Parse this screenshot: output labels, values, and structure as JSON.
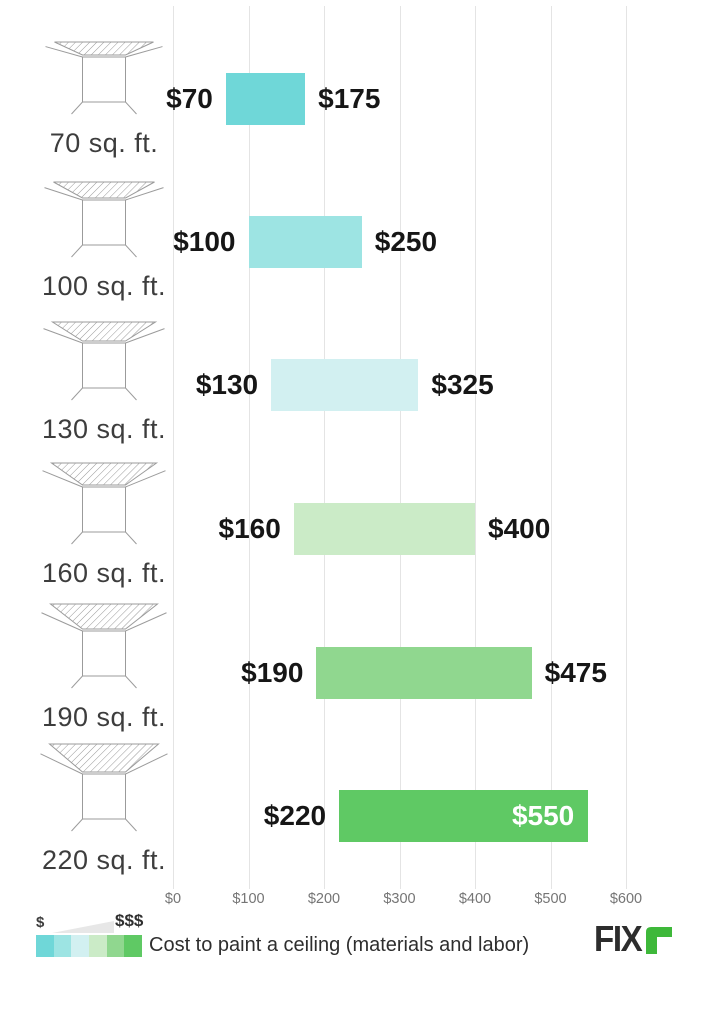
{
  "chart_data": {
    "type": "bar",
    "subtype": "horizontal-range",
    "title": "Cost to paint a ceiling (materials and labor)",
    "xlabel": "",
    "ylabel": "",
    "xlim": [
      0,
      600
    ],
    "grid": true,
    "x_ticks": [
      {
        "value": 0,
        "label": "$0"
      },
      {
        "value": 100,
        "label": "$100"
      },
      {
        "value": 200,
        "label": "$200"
      },
      {
        "value": 300,
        "label": "$300"
      },
      {
        "value": 400,
        "label": "$400"
      },
      {
        "value": 500,
        "label": "$500"
      },
      {
        "value": 600,
        "label": "$600"
      }
    ],
    "categories": [
      "70 sq. ft.",
      "100 sq. ft.",
      "130 sq. ft.",
      "160 sq. ft.",
      "190 sq. ft.",
      "220 sq. ft."
    ],
    "rows": [
      {
        "category": "70 sq. ft.",
        "min": 70,
        "max": 175,
        "min_label": "$70",
        "max_label": "$175",
        "color": "#6fd7d8",
        "max_label_inside": false
      },
      {
        "category": "100 sq. ft.",
        "min": 100,
        "max": 250,
        "min_label": "$100",
        "max_label": "$250",
        "color": "#9de4e3",
        "max_label_inside": false
      },
      {
        "category": "130 sq. ft.",
        "min": 130,
        "max": 325,
        "min_label": "$130",
        "max_label": "$325",
        "color": "#d2f0f1",
        "max_label_inside": false
      },
      {
        "category": "160 sq. ft.",
        "min": 160,
        "max": 400,
        "min_label": "$160",
        "max_label": "$400",
        "color": "#cbebc7",
        "max_label_inside": false
      },
      {
        "category": "190 sq. ft.",
        "min": 190,
        "max": 475,
        "min_label": "$190",
        "max_label": "$475",
        "color": "#90d78f",
        "max_label_inside": false
      },
      {
        "category": "220 sq. ft.",
        "min": 220,
        "max": 550,
        "min_label": "$220",
        "max_label": "$550",
        "color": "#5fc964",
        "max_label_inside": true
      }
    ]
  },
  "legend": {
    "min_symbol": "$",
    "max_symbol": "$$$",
    "caption": "Cost to paint a ceiling (materials and labor)",
    "swatches": [
      "#6fd7d8",
      "#9de4e3",
      "#d2f0f1",
      "#cbebc7",
      "#90d78f",
      "#5fc964"
    ]
  },
  "logo": {
    "text": "FIX",
    "accent_letter": "r",
    "accent_color": "#3eb83a",
    "text_color": "#2d2d2d"
  },
  "colors": {
    "gridline": "#e4e4e4",
    "value_label": "#161616",
    "category_label": "#3d3d3d",
    "tick_label": "#757575",
    "icon_stroke": "#9b9b9b"
  }
}
